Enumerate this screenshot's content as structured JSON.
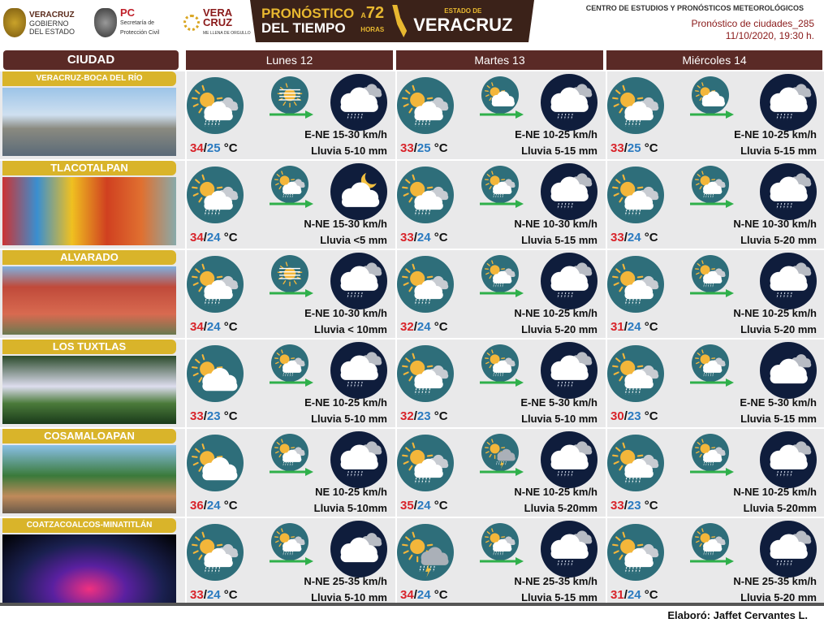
{
  "header": {
    "logos": [
      {
        "name": "veracruz-gobierno",
        "lines": [
          "VERACRUZ",
          "GOBIERNO",
          "DEL ESTADO"
        ]
      },
      {
        "name": "proteccion-civil",
        "lines": [
          "PC",
          "Secretaría de",
          "Protección Civil"
        ]
      },
      {
        "name": "veracruz-me-llena",
        "lines": [
          "VERA",
          "CRUZ",
          "ME LLENA DE ORGULLO"
        ]
      }
    ],
    "banner": {
      "line1": "PRONÓSTICO",
      "line2a": "DEL",
      "line2b": "TIEMPO",
      "hours": "72",
      "hours_prefix": "A",
      "hours_label": "HORAS",
      "state_label": "ESTADO DE",
      "state": "VERACRUZ"
    },
    "center": "CENTRO DE ESTUDIOS Y PRONÓSTICOS METEOROLÓGICOS",
    "product": "Pronóstico de ciudades_285",
    "issued": "11/10/2020, 19:30 h."
  },
  "columns": {
    "city": "CIUDAD",
    "days": [
      "Lunes 12",
      "Martes 13",
      "Miércoles 14"
    ]
  },
  "colors": {
    "day_icon": "#2e6e7a",
    "night_icon": "#0f1d3c",
    "max": "#d8232a",
    "min": "#2a7ac0",
    "arrow": "#2fb04a",
    "header": "#5a2a26",
    "city_label": "#d9b42a"
  },
  "rows": [
    {
      "city": "VERACRUZ-BOCA DEL RÍO",
      "days": [
        {
          "max": "34",
          "min": "25",
          "unit": "°C",
          "wind": "E-NE 15-30 km/h",
          "rain": "Lluvia 5-10 mm",
          "day_icon": "sun-cloud-rain",
          "mid_icon": "sun-haze",
          "night_icon": "cloud-rain"
        },
        {
          "max": "33",
          "min": "25",
          "unit": "°C",
          "wind": "E-NE 10-25 km/h",
          "rain": "Lluvia 5-15 mm",
          "day_icon": "sun-cloud-rain",
          "mid_icon": "sun-cloud",
          "night_icon": "cloud-rain"
        },
        {
          "max": "33",
          "min": "25",
          "unit": "°C",
          "wind": "E-NE 10-25 km/h",
          "rain": "Lluvia 5-15 mm",
          "day_icon": "sun-cloud-rain",
          "mid_icon": "sun-cloud",
          "night_icon": "cloud-rain"
        }
      ]
    },
    {
      "city": "TLACOTALPAN",
      "days": [
        {
          "max": "34",
          "min": "24",
          "unit": "°C",
          "wind": "N-NE 15-30 km/h",
          "rain": "Lluvia <5 mm",
          "day_icon": "sun-cloud-rain",
          "mid_icon": "sun-cloud-rain",
          "night_icon": "moon-cloud"
        },
        {
          "max": "33",
          "min": "24",
          "unit": "°C",
          "wind": "N-NE 10-30 km/h",
          "rain": "Lluvia 5-15 mm",
          "day_icon": "sun-cloud-rain",
          "mid_icon": "sun-cloud-rain",
          "night_icon": "cloud-rain"
        },
        {
          "max": "33",
          "min": "24",
          "unit": "°C",
          "wind": "N-NE 10-30 km/h",
          "rain": "Lluvia 5-20 mm",
          "day_icon": "sun-cloud-rain",
          "mid_icon": "sun-cloud-rain",
          "night_icon": "cloud-rain"
        }
      ]
    },
    {
      "city": "ALVARADO",
      "days": [
        {
          "max": "34",
          "min": "24",
          "unit": "°C",
          "wind": "E-NE 10-30 km/h",
          "rain": "Lluvia < 10mm",
          "day_icon": "sun-cloud-rain",
          "mid_icon": "sun-haze",
          "night_icon": "cloud-rain"
        },
        {
          "max": "32",
          "min": "24",
          "unit": "°C",
          "wind": "N-NE 10-25 km/h",
          "rain": "Lluvia 5-20 mm",
          "day_icon": "sun-cloud-rain",
          "mid_icon": "sun-cloud-rain",
          "night_icon": "cloud-rain"
        },
        {
          "max": "31",
          "min": "24",
          "unit": "°C",
          "wind": "N-NE 10-25 km/h",
          "rain": "Lluvia 5-20 mm",
          "day_icon": "sun-cloud-rain",
          "mid_icon": "sun-cloud-rain",
          "night_icon": "cloud-rain"
        }
      ]
    },
    {
      "city": "LOS TUXTLAS",
      "days": [
        {
          "max": "33",
          "min": "23",
          "unit": "°C",
          "wind": "E-NE 10-25 km/h",
          "rain": "Lluvia 5-10 mm",
          "day_icon": "sun-cloud",
          "mid_icon": "sun-cloud-rain",
          "night_icon": "cloud-rain"
        },
        {
          "max": "32",
          "min": "23",
          "unit": "°C",
          "wind": "E-NE 5-30 km/h",
          "rain": "Lluvia 5-10 mm",
          "day_icon": "sun-cloud-rain",
          "mid_icon": "sun-cloud-rain",
          "night_icon": "cloud-rain"
        },
        {
          "max": "30",
          "min": "23",
          "unit": "°C",
          "wind": "E-NE 5-30 km/h",
          "rain": "Lluvia 5-15 mm",
          "day_icon": "sun-cloud-rain",
          "mid_icon": "sun-cloud-rain",
          "night_icon": "cloud"
        }
      ]
    },
    {
      "city": "COSAMALOAPAN",
      "days": [
        {
          "max": "36",
          "min": "24",
          "unit": "°C",
          "wind": "NE 10-25 km/h",
          "rain": "Lluvia 5-10mm",
          "day_icon": "sun-cloud",
          "mid_icon": "sun-cloud-rain",
          "night_icon": "cloud-rain"
        },
        {
          "max": "35",
          "min": "24",
          "unit": "°C",
          "wind": "N-NE 10-25 km/h",
          "rain": "Lluvia 5-20mm",
          "day_icon": "sun-cloud-rain",
          "mid_icon": "sun-storm",
          "night_icon": "cloud-rain"
        },
        {
          "max": "33",
          "min": "23",
          "unit": "°C",
          "wind": "N-NE 10-25 km/h",
          "rain": "Lluvia 5-20mm",
          "day_icon": "sun-cloud-rain",
          "mid_icon": "sun-cloud-rain",
          "night_icon": "cloud-rain"
        }
      ]
    },
    {
      "city": "COATZACOALCOS-MINATITLÁN",
      "days": [
        {
          "max": "33",
          "min": "24",
          "unit": "°C",
          "wind": "N-NE 25-35 km/h",
          "rain": "Lluvia 5-10 mm",
          "day_icon": "sun-cloud-rain",
          "mid_icon": "sun-cloud-rain",
          "night_icon": "cloud"
        },
        {
          "max": "34",
          "min": "24",
          "unit": "°C",
          "wind": "N-NE 25-35 km/h",
          "rain": "Lluvia 5-15 mm",
          "day_icon": "sun-storm",
          "mid_icon": "sun-cloud-rain",
          "night_icon": "cloud-rain"
        },
        {
          "max": "31",
          "min": "24",
          "unit": "°C",
          "wind": "N-NE 25-35 km/h",
          "rain": "Lluvia 5-20 mm",
          "day_icon": "sun-cloud-rain",
          "mid_icon": "sun-cloud-rain",
          "night_icon": "cloud-rain"
        }
      ]
    }
  ],
  "footer": "Elaboró: Jaffet Cervantes L."
}
